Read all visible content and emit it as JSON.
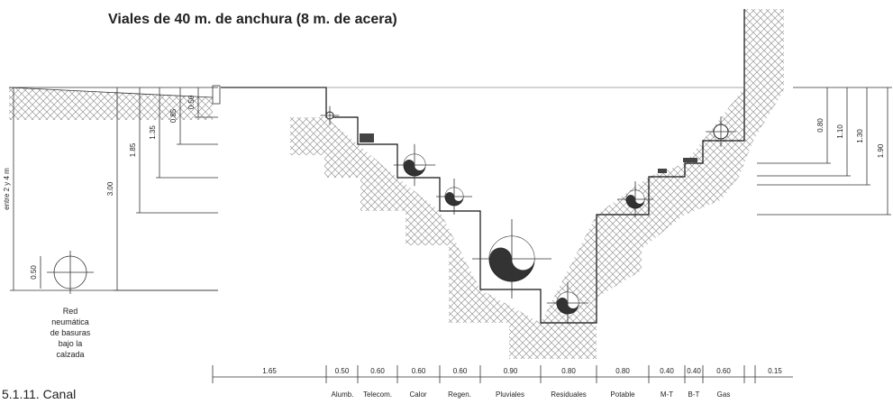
{
  "title": "Viales de 40 m. de anchura (8 m. de acera)",
  "left_dimensions": [
    "entre 2 y 4 m",
    "3.00",
    "1.85",
    "1.35",
    "0.85",
    "0.50"
  ],
  "right_dimensions": [
    "0.80",
    "1.10",
    "1.30",
    "1.90"
  ],
  "circle_dimension": "0.50",
  "note": [
    "Red",
    "neumática",
    "de basuras",
    "bajo la",
    "calzada"
  ],
  "bottom_dimensions": [
    "1.65",
    "0.50",
    "0.60",
    "0.60",
    "0.60",
    "0.90",
    "0.80",
    "0.80",
    "0.40",
    "0.40",
    "0.60",
    "0.15"
  ],
  "utilities": [
    "Alumb.",
    "Telecom.",
    "Calor",
    "Regen.",
    "Pluviales",
    "Residuales",
    "Potable",
    "M-T",
    "B-T",
    "Gas"
  ],
  "caption": "5.1.11.  Canal"
}
